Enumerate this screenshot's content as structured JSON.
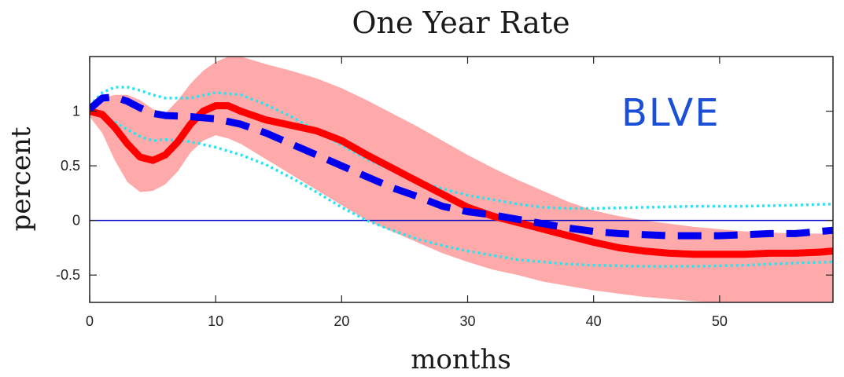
{
  "chart_data": {
    "type": "line",
    "title": "One Year Rate",
    "xlabel": "months",
    "ylabel": "percent",
    "xlim": [
      0,
      59
    ],
    "ylim": [
      -0.75,
      1.5
    ],
    "xticks": [
      0,
      10,
      20,
      30,
      40,
      50
    ],
    "xtick_labels": [
      "0",
      "10",
      "20",
      "30",
      "40",
      "50"
    ],
    "yticks": [
      -0.5,
      0,
      0.5,
      1
    ],
    "ytick_labels": [
      "-0.5",
      "0",
      "0.5",
      "1"
    ],
    "grid": false,
    "annotation": "BLVE",
    "reference_line": {
      "y": 0,
      "color": "#0000cc"
    },
    "series": [
      {
        "style": "solid",
        "color": "#ff0000",
        "x": [
          0,
          1,
          2,
          3,
          4,
          5,
          6,
          7,
          8,
          9,
          10,
          11,
          12,
          14,
          16,
          18,
          20,
          22,
          24,
          26,
          28,
          30,
          32,
          34,
          36,
          38,
          40,
          42,
          44,
          46,
          48,
          50,
          52,
          54,
          56,
          58,
          59
        ],
        "y": [
          1.0,
          0.97,
          0.85,
          0.7,
          0.58,
          0.55,
          0.6,
          0.72,
          0.88,
          1.0,
          1.05,
          1.05,
          1.0,
          0.92,
          0.87,
          0.82,
          0.73,
          0.6,
          0.48,
          0.36,
          0.24,
          0.12,
          0.04,
          -0.02,
          -0.08,
          -0.14,
          -0.2,
          -0.25,
          -0.28,
          -0.3,
          -0.31,
          -0.31,
          -0.31,
          -0.3,
          -0.3,
          -0.29,
          -0.28
        ]
      },
      {
        "style": "dashed",
        "color": "#0000ee",
        "x": [
          0,
          1,
          2,
          3,
          4,
          5,
          6,
          8,
          10,
          12,
          14,
          16,
          18,
          20,
          22,
          24,
          26,
          28,
          30,
          32,
          34,
          36,
          38,
          40,
          42,
          44,
          46,
          48,
          50,
          52,
          54,
          56,
          58,
          59
        ],
        "y": [
          1.02,
          1.12,
          1.13,
          1.09,
          1.03,
          0.98,
          0.96,
          0.95,
          0.93,
          0.88,
          0.8,
          0.7,
          0.6,
          0.5,
          0.4,
          0.3,
          0.22,
          0.13,
          0.08,
          0.05,
          0.01,
          -0.03,
          -0.07,
          -0.1,
          -0.12,
          -0.13,
          -0.14,
          -0.14,
          -0.14,
          -0.13,
          -0.12,
          -0.12,
          -0.1,
          -0.09
        ]
      },
      {
        "style": "dotted",
        "color": "#22e6f0",
        "x": [
          0,
          1,
          2,
          3,
          4,
          5,
          6,
          8,
          10,
          12,
          14,
          16,
          18,
          20,
          22,
          24,
          26,
          28,
          30,
          32,
          34,
          36,
          38,
          40,
          44,
          48,
          52,
          56,
          59
        ],
        "y": [
          1.05,
          1.17,
          1.22,
          1.22,
          1.19,
          1.15,
          1.12,
          1.12,
          1.17,
          1.15,
          1.06,
          0.95,
          0.82,
          0.69,
          0.56,
          0.46,
          0.36,
          0.29,
          0.23,
          0.19,
          0.15,
          0.12,
          0.11,
          0.11,
          0.12,
          0.13,
          0.13,
          0.14,
          0.15
        ]
      },
      {
        "style": "dotted",
        "color": "#22e6f0",
        "x": [
          0,
          1,
          2,
          3,
          4,
          5,
          6,
          8,
          10,
          12,
          14,
          16,
          18,
          20,
          22,
          24,
          26,
          28,
          30,
          32,
          34,
          36,
          38,
          40,
          44,
          48,
          52,
          56,
          59
        ],
        "y": [
          1.0,
          0.97,
          0.9,
          0.83,
          0.77,
          0.73,
          0.74,
          0.72,
          0.67,
          0.6,
          0.51,
          0.39,
          0.26,
          0.12,
          0.0,
          -0.09,
          -0.17,
          -0.23,
          -0.28,
          -0.32,
          -0.36,
          -0.38,
          -0.4,
          -0.41,
          -0.42,
          -0.42,
          -0.41,
          -0.39,
          -0.38
        ]
      }
    ],
    "band": {
      "color": "#ffaaaa",
      "x": [
        0,
        1,
        2,
        3,
        4,
        5,
        6,
        7,
        8,
        9,
        10,
        11,
        12,
        14,
        16,
        18,
        20,
        22,
        24,
        26,
        28,
        30,
        32,
        34,
        36,
        38,
        40,
        42,
        44,
        46,
        48,
        50,
        52,
        54,
        56,
        58,
        59
      ],
      "lower": [
        0.95,
        0.8,
        0.55,
        0.35,
        0.26,
        0.27,
        0.33,
        0.45,
        0.62,
        0.73,
        0.78,
        0.75,
        0.7,
        0.56,
        0.42,
        0.28,
        0.14,
        0.0,
        -0.1,
        -0.2,
        -0.3,
        -0.38,
        -0.45,
        -0.5,
        -0.56,
        -0.6,
        -0.64,
        -0.67,
        -0.7,
        -0.72,
        -0.74,
        -0.75,
        -0.75,
        -0.75,
        -0.75,
        -0.75,
        -0.75
      ],
      "upper": [
        1.05,
        1.12,
        1.15,
        1.15,
        1.1,
        1.02,
        0.98,
        1.1,
        1.25,
        1.37,
        1.45,
        1.5,
        1.5,
        1.43,
        1.37,
        1.3,
        1.21,
        1.1,
        0.98,
        0.86,
        0.73,
        0.6,
        0.48,
        0.37,
        0.27,
        0.17,
        0.09,
        0.04,
        0.0,
        -0.03,
        -0.06,
        -0.08,
        -0.1,
        -0.11,
        -0.12,
        -0.12,
        -0.12
      ]
    }
  }
}
